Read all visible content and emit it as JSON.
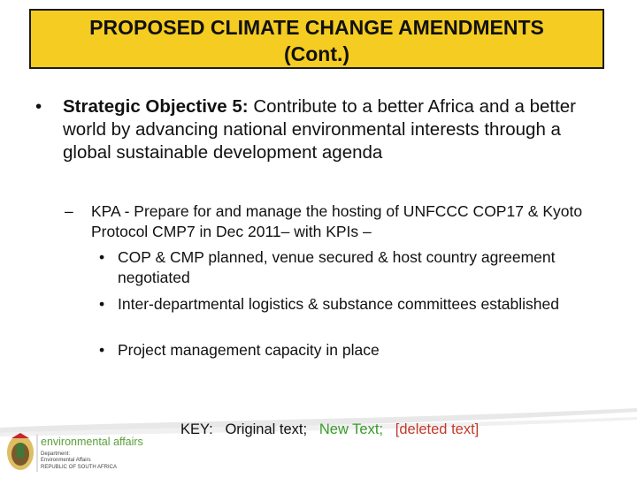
{
  "title": {
    "line1": "PROPOSED CLIMATE CHANGE AMENDMENTS",
    "line2": "(Cont.)"
  },
  "objective": {
    "bullet": "•",
    "label": "Strategic Objective 5:",
    "text": " Contribute to a better Africa and a better world by advancing national environmental interests through a global sustainable development agenda"
  },
  "kpa": {
    "dash": "–",
    "text": "KPA - Prepare for and manage the hosting of UNFCCC COP17 & Kyoto Protocol CMP7 in Dec 2011– with KPIs –"
  },
  "kpis": [
    {
      "bullet": "•",
      "text": "COP & CMP planned, venue secured & host country agreement negotiated"
    },
    {
      "bullet": "•",
      "text": "Inter-departmental logistics & substance committees established"
    },
    {
      "bullet": "•",
      "text": "Project management capacity in place"
    }
  ],
  "logo": {
    "name": "environmental affairs",
    "dept": "Department:",
    "dept2": "Environmental Affairs",
    "country": "REPUBLIC OF SOUTH AFRICA"
  },
  "key": {
    "prefix": "KEY:",
    "original": "Original text;",
    "new_text": "New Text;",
    "deleted": "[deleted text]"
  },
  "colors": {
    "title_bg": "#f5cc21",
    "new_text": "#3a9a2c",
    "deleted_text": "#c0392b",
    "logo_green": "#5a9e3a"
  }
}
